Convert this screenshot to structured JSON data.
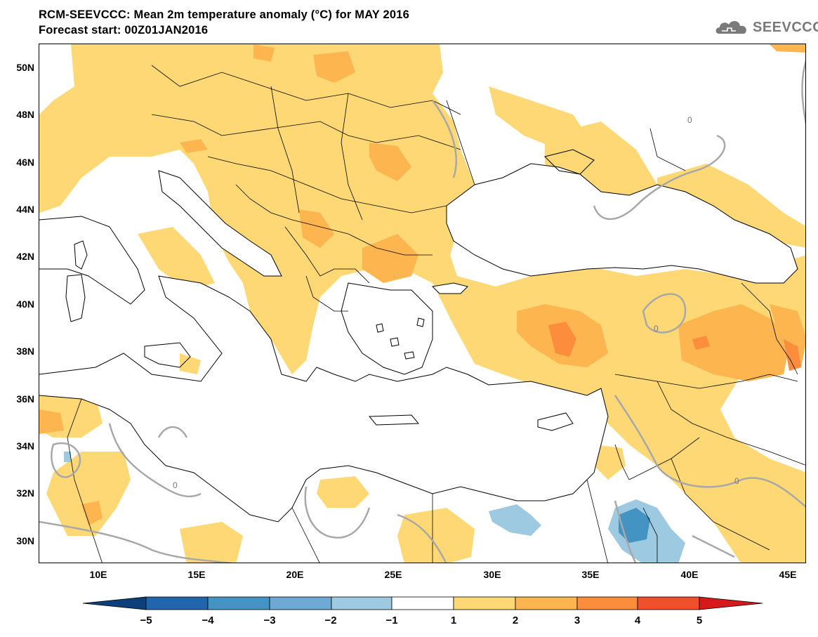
{
  "header": {
    "title": "RCM-SEEVCCC: Mean 2m temperature anomaly (°C) for MAY 2016",
    "subtitle": "Forecast start: 00Z01JAN2016"
  },
  "logo": {
    "text": "SEEVCCC",
    "icon": "cloud-icon"
  },
  "map": {
    "region": "Mediterranean / Black Sea",
    "lon_range": [
      7,
      46
    ],
    "lat_range": [
      29,
      51
    ],
    "lat_ticks": [
      "50N",
      "48N",
      "46N",
      "44N",
      "42N",
      "40N",
      "38N",
      "36N",
      "34N",
      "32N",
      "30N"
    ],
    "lon_ticks": [
      "10E",
      "15E",
      "20E",
      "25E",
      "30E",
      "35E",
      "40E",
      "45E"
    ],
    "contour_label": "0",
    "colors": {
      "land_outline": "#000000",
      "zero_contour": "#a8a8a8"
    }
  },
  "colorbar": {
    "labels": [
      "−5",
      "−4",
      "−3",
      "−2",
      "−1",
      "1",
      "2",
      "3",
      "4",
      "5"
    ],
    "colors": [
      "#0d3f7a",
      "#2166ac",
      "#4393c3",
      "#6ea9d6",
      "#9ecae1",
      "#ffffff",
      "#fdd874",
      "#fdb550",
      "#fc8d3c",
      "#f0502d",
      "#d7191c"
    ]
  }
}
